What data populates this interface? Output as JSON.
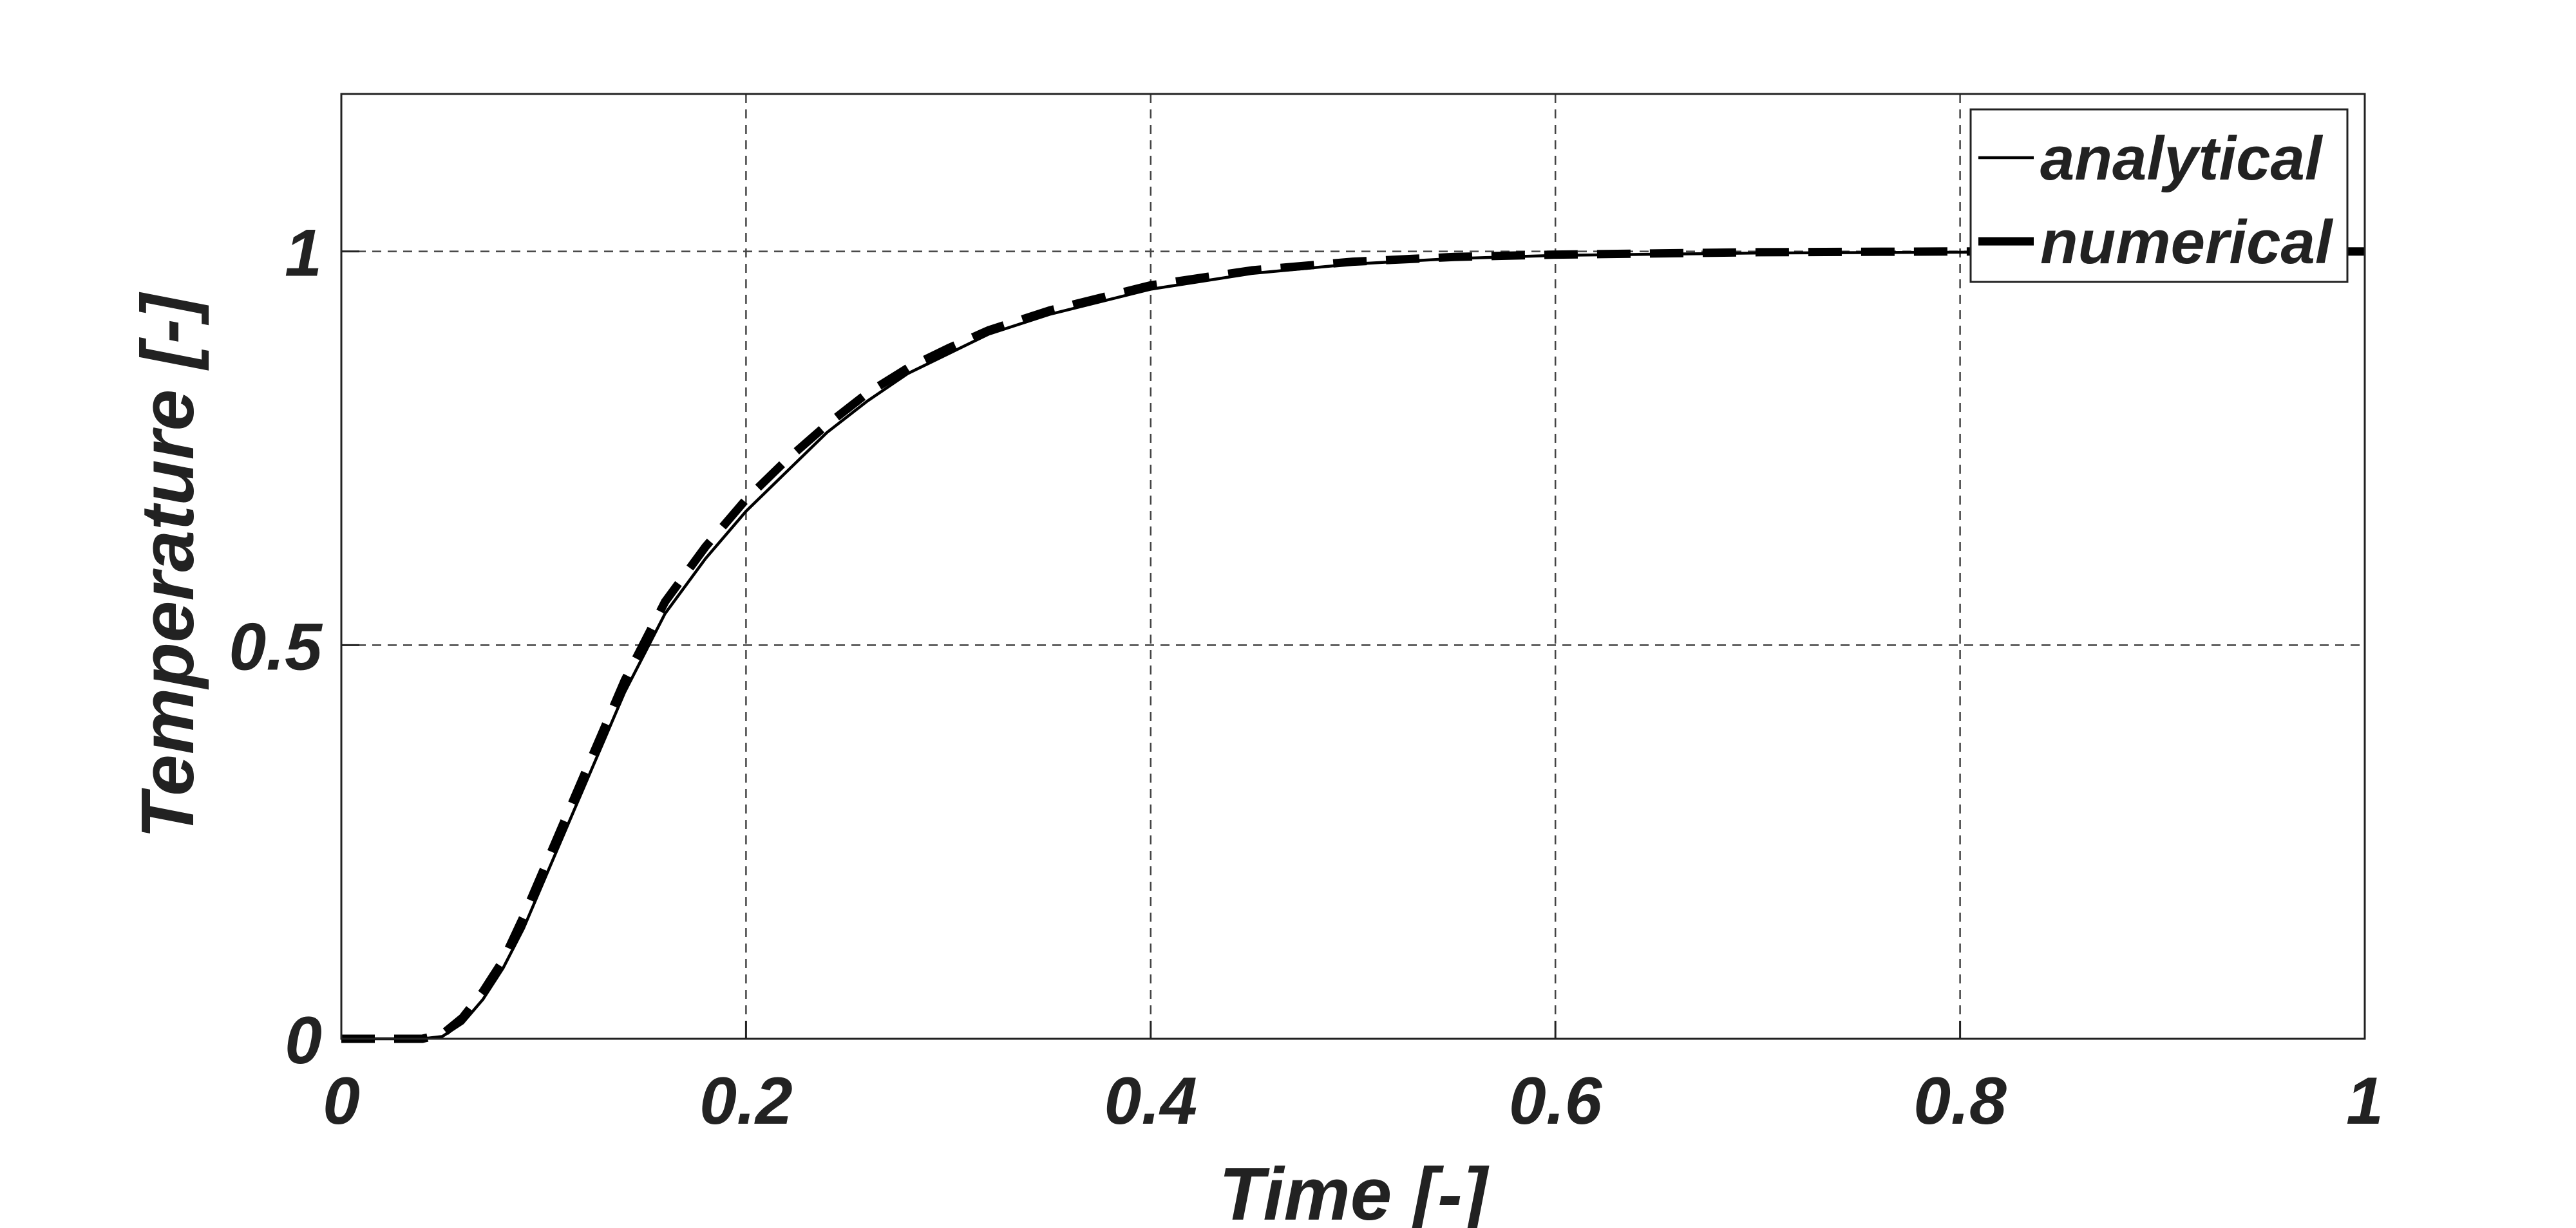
{
  "chart_data": {
    "type": "line",
    "title": "",
    "xlabel": "Time [-]",
    "ylabel": "Temperature [-]",
    "xlim": [
      0,
      1
    ],
    "ylim": [
      0,
      1.2
    ],
    "x_ticks": [
      0,
      0.2,
      0.4,
      0.6,
      0.8,
      1
    ],
    "x_tick_labels": [
      "0",
      "0.2",
      "0.4",
      "0.6",
      "0.8",
      "1"
    ],
    "y_ticks": [
      0,
      0.5,
      1
    ],
    "y_tick_labels": [
      "0",
      "0.5",
      "1"
    ],
    "grid": true,
    "legend_position": "top-right",
    "series": [
      {
        "name": "analytical",
        "style": "solid",
        "color": "#000000",
        "x": [
          0,
          0.04,
          0.05,
          0.06,
          0.07,
          0.08,
          0.09,
          0.1,
          0.11,
          0.12,
          0.13,
          0.14,
          0.15,
          0.16,
          0.18,
          0.2,
          0.22,
          0.24,
          0.26,
          0.28,
          0.3,
          0.32,
          0.35,
          0.4,
          0.45,
          0.5,
          0.55,
          0.6,
          0.7,
          0.8,
          0.9,
          1.0
        ],
        "y": [
          0,
          0,
          0.003,
          0.02,
          0.05,
          0.09,
          0.14,
          0.2,
          0.26,
          0.32,
          0.38,
          0.44,
          0.49,
          0.54,
          0.61,
          0.67,
          0.72,
          0.77,
          0.81,
          0.845,
          0.87,
          0.895,
          0.92,
          0.952,
          0.972,
          0.984,
          0.991,
          0.995,
          0.998,
          0.999,
          1.0,
          1.0
        ]
      },
      {
        "name": "numerical",
        "style": "dashed",
        "color": "#000000",
        "x": [
          0,
          0.04,
          0.05,
          0.06,
          0.07,
          0.08,
          0.09,
          0.1,
          0.11,
          0.12,
          0.13,
          0.14,
          0.15,
          0.16,
          0.18,
          0.2,
          0.22,
          0.24,
          0.26,
          0.28,
          0.3,
          0.32,
          0.35,
          0.4,
          0.45,
          0.5,
          0.55,
          0.6,
          0.7,
          0.8,
          0.9,
          1.0
        ],
        "y": [
          0,
          0,
          0.006,
          0.027,
          0.06,
          0.1,
          0.155,
          0.215,
          0.275,
          0.335,
          0.395,
          0.455,
          0.505,
          0.555,
          0.625,
          0.685,
          0.735,
          0.78,
          0.82,
          0.852,
          0.877,
          0.9,
          0.925,
          0.957,
          0.976,
          0.987,
          0.993,
          0.996,
          0.999,
          1.0,
          1.0,
          1.0
        ]
      }
    ]
  }
}
